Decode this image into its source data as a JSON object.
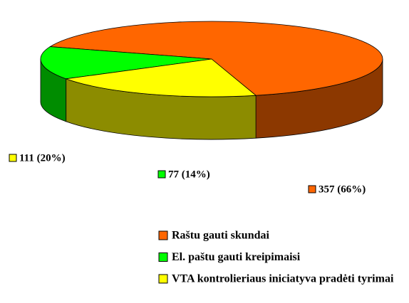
{
  "chart_data": {
    "type": "pie",
    "categories": [
      "Raštu gauti skundai",
      "El. paštu gauti kreipimaisi",
      "VTA kontrolieriaus iniciatyva pradėti tyrimai"
    ],
    "values": [
      357,
      77,
      111
    ],
    "value_labels": [
      "357 (66%)",
      "77 (14%)",
      "111 (20%)"
    ],
    "colors": [
      "#ff6600",
      "#00ff00",
      "#ffff00"
    ],
    "legend": "bottom"
  }
}
